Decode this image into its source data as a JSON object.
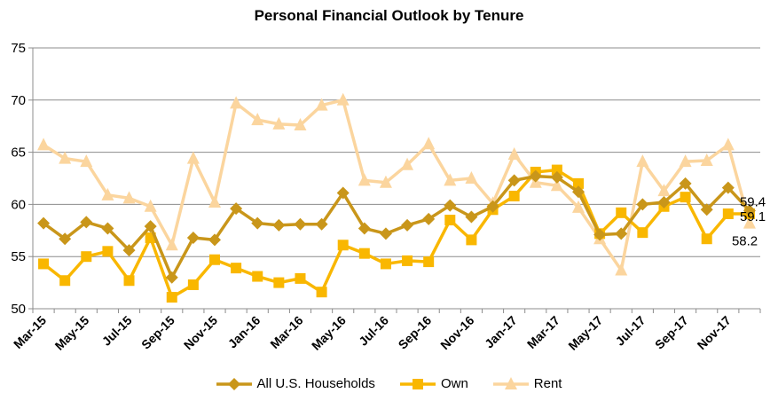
{
  "chart_data": {
    "type": "line",
    "title": "Personal Financial Outlook by Tenure",
    "xlabel": "",
    "ylabel": "",
    "ylim": [
      50,
      75
    ],
    "yticks": [
      50,
      55,
      60,
      65,
      70,
      75
    ],
    "grid": true,
    "legend_position": "bottom",
    "x": [
      "Mar-15",
      "Apr-15",
      "May-15",
      "Jun-15",
      "Jul-15",
      "Aug-15",
      "Sep-15",
      "Oct-15",
      "Nov-15",
      "Dec-15",
      "Jan-16",
      "Feb-16",
      "Mar-16",
      "Apr-16",
      "May-16",
      "Jun-16",
      "Jul-16",
      "Aug-16",
      "Sep-16",
      "Oct-16",
      "Nov-16",
      "Dec-16",
      "Jan-17",
      "Feb-17",
      "Mar-17",
      "Apr-17",
      "May-17",
      "Jun-17",
      "Jul-17",
      "Aug-17",
      "Sep-17",
      "Oct-17",
      "Nov-17",
      "Dec-17"
    ],
    "xtick_labels": [
      "Mar-15",
      "May-15",
      "Jul-15",
      "Sep-15",
      "Nov-15",
      "Jan-16",
      "Mar-16",
      "May-16",
      "Jul-16",
      "Sep-16",
      "Nov-16",
      "Jan-17",
      "Mar-17",
      "May-17",
      "Jul-17",
      "Sep-17",
      "Nov-17"
    ],
    "series": [
      {
        "name": "All U.S. Households",
        "color": "#C9961A",
        "marker": "diamond",
        "values": [
          58.2,
          56.7,
          58.3,
          57.7,
          55.6,
          57.9,
          53.0,
          56.8,
          56.6,
          59.6,
          58.2,
          58.0,
          58.1,
          58.1,
          61.1,
          57.7,
          57.2,
          58.0,
          58.6,
          59.9,
          58.8,
          59.8,
          62.3,
          62.7,
          62.6,
          61.2,
          57.1,
          57.2,
          60.0,
          60.2,
          62.0,
          59.5,
          61.6,
          59.4
        ],
        "end_label": "59.4"
      },
      {
        "name": "Own",
        "color": "#F9B700",
        "marker": "square",
        "values": [
          54.3,
          52.7,
          55.0,
          55.5,
          52.7,
          56.8,
          51.1,
          52.3,
          54.7,
          53.9,
          53.1,
          52.5,
          52.9,
          51.6,
          56.1,
          55.3,
          54.3,
          54.6,
          54.5,
          58.5,
          56.6,
          59.5,
          60.8,
          63.1,
          63.3,
          62.0,
          57.2,
          59.2,
          57.3,
          59.8,
          60.7,
          56.7,
          59.1,
          59.1
        ],
        "end_label": "59.1"
      },
      {
        "name": "Rent",
        "color": "#FBD59E",
        "marker": "triangle",
        "values": [
          65.7,
          64.4,
          64.1,
          60.9,
          60.6,
          59.8,
          56.1,
          64.4,
          60.2,
          69.7,
          68.1,
          67.7,
          67.6,
          69.5,
          70.0,
          62.3,
          62.1,
          63.8,
          65.8,
          62.3,
          62.5,
          60.1,
          64.8,
          62.1,
          61.8,
          59.7,
          56.7,
          53.7,
          64.1,
          61.3,
          64.1,
          64.2,
          65.7,
          58.2
        ],
        "end_label": "58.2"
      }
    ]
  }
}
